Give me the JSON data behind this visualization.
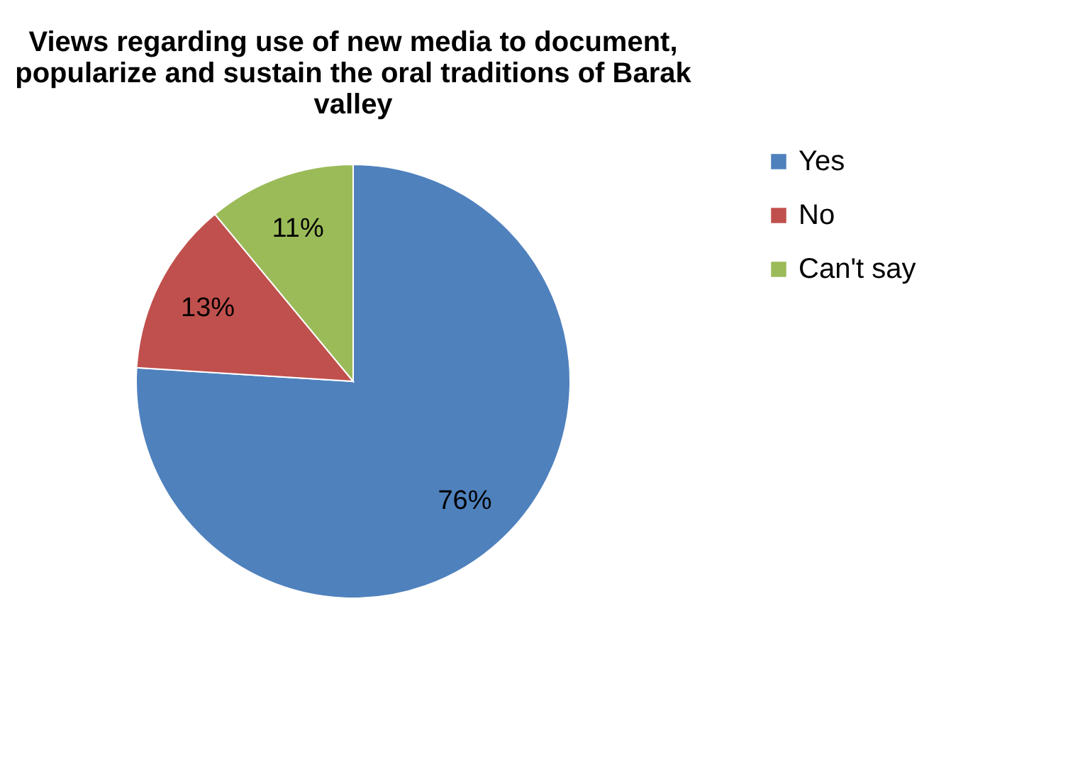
{
  "chart_data": {
    "type": "pie",
    "title": "Views regarding use of new media to document, popularize and sustain the oral traditions of Barak valley",
    "categories": [
      "Yes",
      "No",
      "Can't say"
    ],
    "values": [
      76,
      13,
      11
    ],
    "colors": [
      "#4f81bd",
      "#c0504d",
      "#9bbb59"
    ],
    "value_labels": [
      "76%",
      "13%",
      "11%"
    ],
    "legend": "right"
  }
}
